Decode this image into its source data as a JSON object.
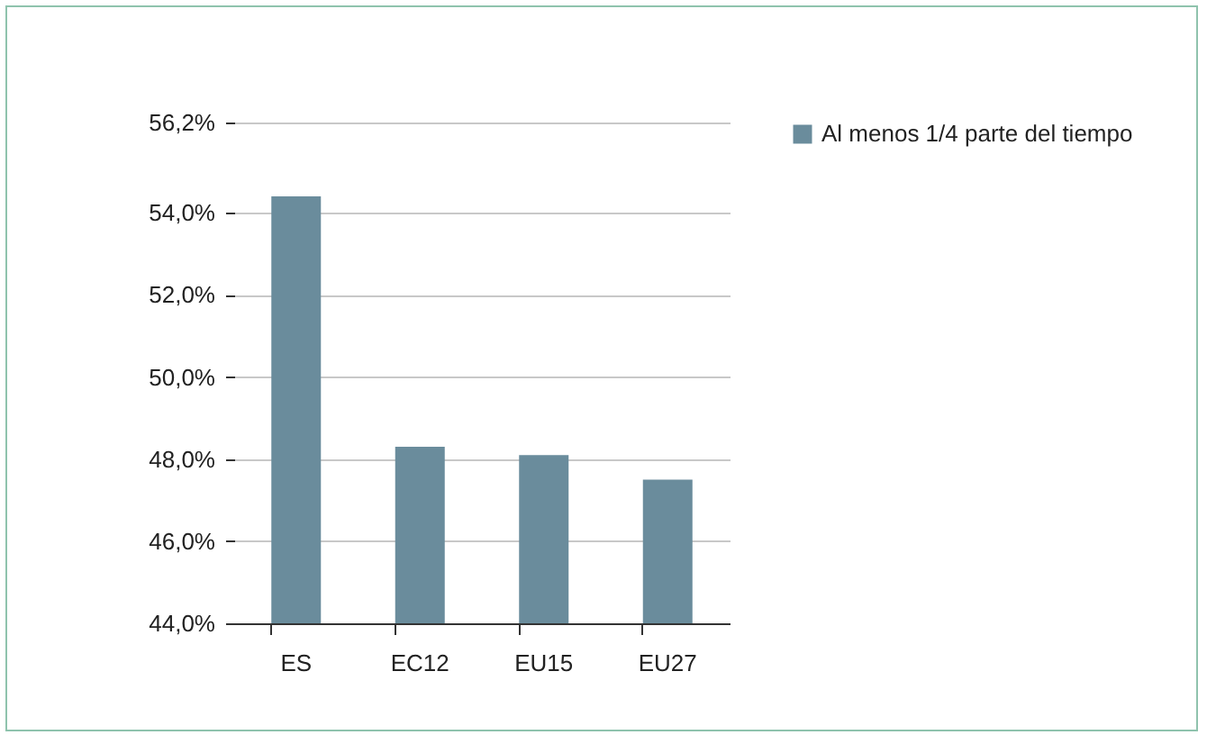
{
  "chart_data": {
    "type": "bar",
    "categories": [
      "ES",
      "EC12",
      "EU15",
      "EU27"
    ],
    "series": [
      {
        "name": "Al menos 1/4 parte del tiempo",
        "color": "#6a8c9c",
        "values": [
          54.4,
          48.3,
          48.1,
          47.5
        ]
      }
    ],
    "ylim": [
      44,
      56.2
    ],
    "yticks": [
      {
        "value": 44,
        "label": "44,0%"
      },
      {
        "value": 46,
        "label": "46,0%"
      },
      {
        "value": 48,
        "label": "48,0%"
      },
      {
        "value": 50,
        "label": "50,0%"
      },
      {
        "value": 52,
        "label": "52,0%"
      },
      {
        "value": 54,
        "label": "54,0%"
      },
      {
        "value": 56.2,
        "label": "56,2%"
      }
    ],
    "grid": "y",
    "legend": "right"
  }
}
